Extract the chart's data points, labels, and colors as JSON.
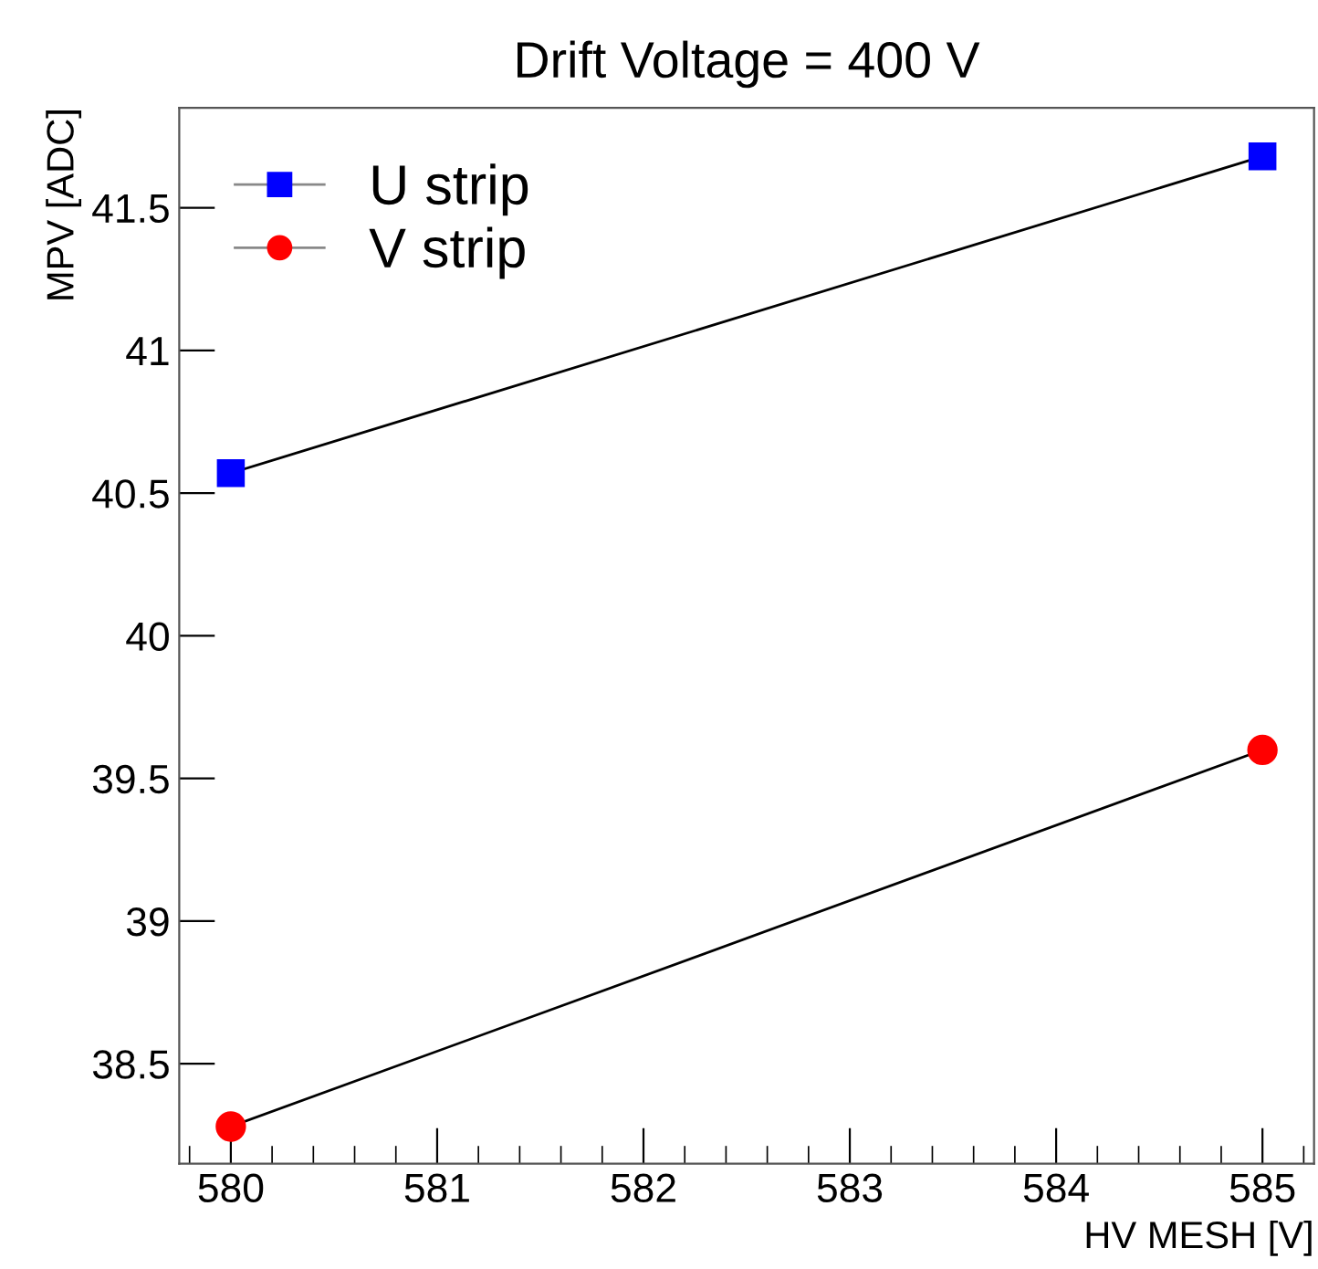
{
  "chart_data": {
    "type": "line",
    "title": "Drift Voltage = 400 V",
    "xlabel": "HV MESH [V]",
    "ylabel": "MPV [ADC]",
    "x": [
      580,
      585
    ],
    "series": [
      {
        "name": "U strip",
        "color": "#0000ff",
        "marker": "square",
        "values": [
          40.57,
          41.68
        ]
      },
      {
        "name": "V strip",
        "color": "#ff0000",
        "marker": "circle",
        "values": [
          38.28,
          39.6
        ]
      }
    ],
    "xlim": [
      579.75,
      585.25
    ],
    "xticks": [
      580,
      581,
      582,
      583,
      584,
      585
    ],
    "ylim": [
      38.15,
      41.85
    ],
    "yticks": [
      38.5,
      39,
      39.5,
      40,
      40.5,
      41,
      41.5
    ],
    "grid": false,
    "legend": "top left",
    "line_style": "solid"
  }
}
